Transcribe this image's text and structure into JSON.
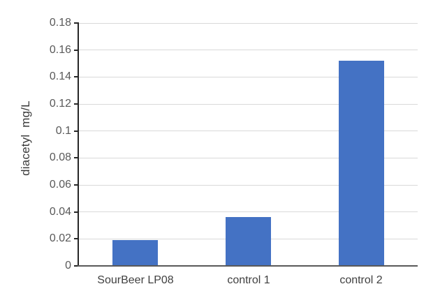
{
  "chart_data": {
    "type": "bar",
    "title": "",
    "xlabel": "",
    "ylabel": "diacetyl  mg/L",
    "categories": [
      "SourBeer LP08",
      "control 1",
      "control 2"
    ],
    "values": [
      0.019,
      0.036,
      0.152
    ],
    "ylim": [
      0,
      0.18
    ],
    "ytick_step": 0.02,
    "yticks": [
      0,
      0.02,
      0.04,
      0.06,
      0.08,
      0.1,
      0.12,
      0.14,
      0.16,
      0.18
    ],
    "ytick_labels": [
      "0",
      "0.02",
      "0.04",
      "0.06",
      "0.08",
      "0.1",
      "0.12",
      "0.14",
      "0.16",
      "0.18"
    ],
    "grid": true,
    "legend": false,
    "colors": {
      "bar": "#4472c4",
      "gridline": "#d9d9d9",
      "y_axis": "#262626",
      "x_axis": "#595959",
      "tick_label": "#595959",
      "category_label": "#404040",
      "axis_title": "#3a3a3a"
    }
  }
}
